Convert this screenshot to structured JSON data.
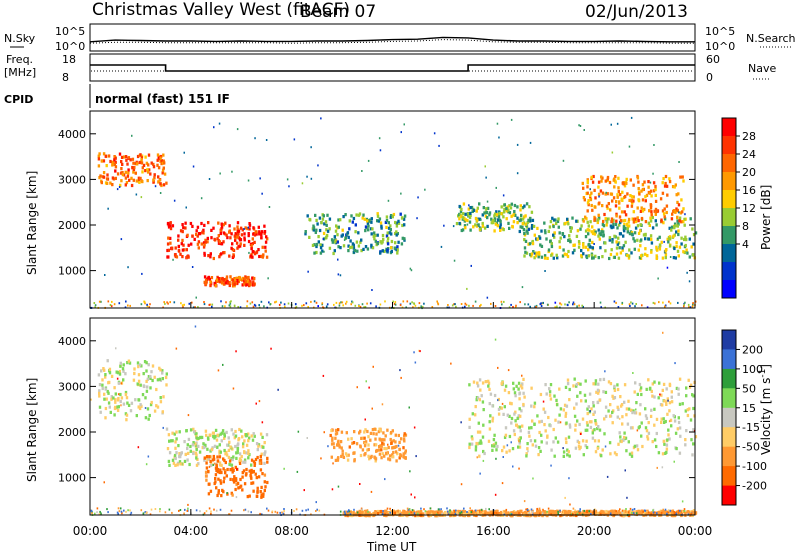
{
  "header": {
    "title": "Christmas Valley West (fitACF)",
    "beam": "Beam 07",
    "date": "02/Jun/2013"
  },
  "colors": {
    "background": "#ffffff",
    "axes": "#000000",
    "groundscatter": "#b8b8b0"
  },
  "chart_data": [
    {
      "type": "line",
      "name": "noise-panel",
      "ylabel_left": "N.Sky",
      "ylabel_right": "N.Search",
      "ticks_left": [
        "10^5",
        "10^0"
      ],
      "ticks_right": [
        "10^5",
        "10^0"
      ],
      "x": [
        0,
        1,
        2,
        3,
        4,
        5,
        6,
        7,
        8,
        9,
        10,
        11,
        12,
        13,
        14,
        15,
        16,
        17,
        18,
        19,
        20,
        21,
        22,
        23,
        24
      ],
      "series": [
        {
          "values": [
            1.4,
            1.8,
            1.7,
            1.6,
            1.6,
            1.5,
            1.6,
            1.5,
            1.5,
            1.6,
            1.6,
            1.7,
            1.9,
            2.0,
            2.4,
            2.3,
            1.8,
            1.6,
            1.6,
            1.5,
            1.5,
            1.6,
            1.5,
            1.4,
            1.4
          ]
        },
        {
          "values": [
            1.1,
            1.3,
            1.3,
            1.2,
            1.2,
            1.2,
            1.2,
            1.2,
            1.1,
            1.2,
            1.2,
            1.3,
            1.5,
            1.6,
            1.9,
            1.8,
            1.4,
            1.3,
            1.3,
            1.2,
            1.2,
            1.2,
            1.2,
            1.1,
            1.1
          ]
        }
      ]
    },
    {
      "type": "line",
      "name": "frequency-panel",
      "ylabel_left": "Freq. [MHz]",
      "ylabel_right": "Nave",
      "ticks_left": [
        "18",
        "8"
      ],
      "ticks_right": [
        "60",
        "0"
      ],
      "cpid_label": "CPID",
      "cpid_text": "normal (fast) 151 IF",
      "x": [
        0,
        3,
        3,
        15,
        15,
        24
      ],
      "freq": [
        14.5,
        14.5,
        11.5,
        11.5,
        14.5,
        14.5
      ]
    },
    {
      "type": "heatmap",
      "name": "power-panel",
      "ylabel": "Slant Range [km]",
      "yticks": [
        "1000",
        "2000",
        "3000",
        "4000"
      ],
      "ylim": [
        180,
        4500
      ],
      "colorbar_label": "Power [dB]",
      "colorbar_ticks": [
        "28",
        "24",
        "20",
        "16",
        "12",
        "8",
        "4"
      ],
      "colorbar_colors": [
        "#ff0000",
        "#ff3300",
        "#ff6600",
        "#ff9900",
        "#ffcc00",
        "#99cc33",
        "#339966",
        "#006699",
        "#0033cc",
        "#0000ff"
      ],
      "features": [
        {
          "t": [
            0.3,
            3.0
          ],
          "r": [
            2900,
            3600
          ],
          "p": 24
        },
        {
          "t": [
            3.0,
            7.0
          ],
          "r": [
            1300,
            2100
          ],
          "p": 28
        },
        {
          "t": [
            4.5,
            6.5
          ],
          "r": [
            700,
            900
          ],
          "p": 26
        },
        {
          "t": [
            8.5,
            12.5
          ],
          "r": [
            1400,
            2300
          ],
          "p": 12
        },
        {
          "t": [
            14.5,
            17.5
          ],
          "r": [
            1900,
            2500
          ],
          "p": 14
        },
        {
          "t": [
            17,
            24
          ],
          "r": [
            1300,
            2200
          ],
          "p": 14
        },
        {
          "t": [
            19.5,
            23.5
          ],
          "r": [
            2100,
            3100
          ],
          "p": 22
        }
      ]
    },
    {
      "type": "heatmap",
      "name": "velocity-panel",
      "ylabel": "Slant Range [km]",
      "yticks": [
        "1000",
        "2000",
        "3000",
        "4000"
      ],
      "ylim": [
        180,
        4500
      ],
      "colorbar_label": "Velocity [m s^-1]",
      "colorbar_ticks": [
        "200",
        "100",
        "50",
        "15",
        "-15",
        "-50",
        "-100",
        "-200"
      ],
      "colorbar_colors": [
        "#1f3ca3",
        "#3b72d6",
        "#2e9e3a",
        "#7ed957",
        "#c8c8c0",
        "#ffcc66",
        "#ff9933",
        "#ff6a00",
        "#ff0000"
      ],
      "features": [
        {
          "t": [
            0.3,
            3.0
          ],
          "r": [
            2300,
            3600
          ],
          "v": 0
        },
        {
          "t": [
            3.0,
            7.0
          ],
          "r": [
            1300,
            2100
          ],
          "v": 0
        },
        {
          "t": [
            4.5,
            7.0
          ],
          "r": [
            600,
            1500
          ],
          "v": -100
        },
        {
          "t": [
            9.5,
            12.5
          ],
          "r": [
            1400,
            2100
          ],
          "v": -50
        },
        {
          "t": [
            15,
            24
          ],
          "r": [
            1500,
            3200
          ],
          "v": 0
        },
        {
          "t": [
            10,
            24
          ],
          "r": [
            200,
            300
          ],
          "v": -50
        }
      ]
    }
  ],
  "xaxis": {
    "ticks": [
      "00:00",
      "04:00",
      "08:00",
      "12:00",
      "16:00",
      "20:00",
      "00:00"
    ],
    "label": "Time UT"
  }
}
